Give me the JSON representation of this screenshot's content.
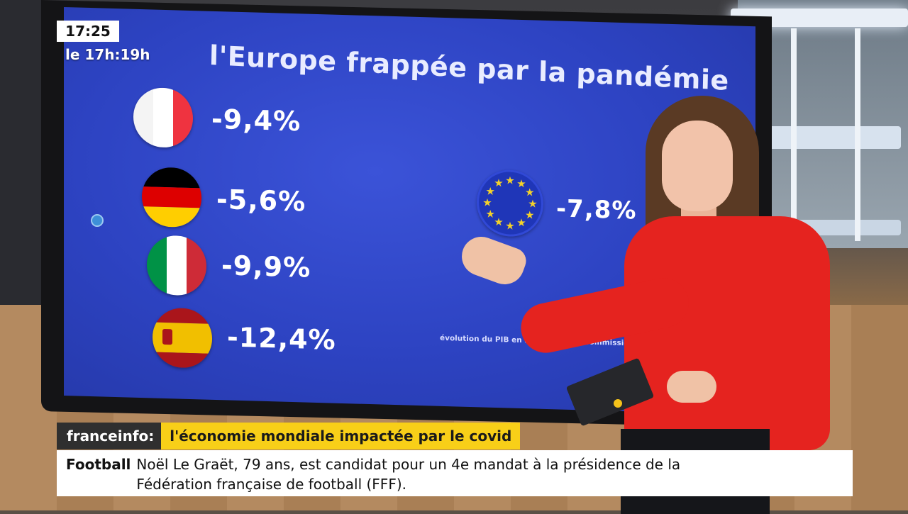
{
  "overlay": {
    "clock": "17:25",
    "program": "le 17h:19h"
  },
  "screen": {
    "title": "l'Europe frappée par la pandémie",
    "countries": [
      {
        "flag_icon": "france-flag-icon",
        "value": "-9,4%",
        "colors": [
          "#ffffff",
          "#ffffff",
          "#ef3340"
        ]
      },
      {
        "flag_icon": "germany-flag-icon",
        "value": "-5,6%",
        "colors": [
          "#000000",
          "#dd0000",
          "#ffce00"
        ]
      },
      {
        "flag_icon": "italy-flag-icon",
        "value": "-9,9%",
        "colors": [
          "#009246",
          "#ffffff",
          "#ce2b37"
        ]
      },
      {
        "flag_icon": "spain-flag-icon",
        "value": "-12,4%",
        "colors": [
          "#aa151b",
          "#f1bf00",
          "#aa151b"
        ]
      }
    ],
    "eu": {
      "flag_icon": "eu-flag-icon",
      "value": "-7,8%"
    },
    "source_note": "évolution du PIB en 2020 / source Commission europée"
  },
  "ticker": {
    "brand": "franceinfo:",
    "headline": "l'économie mondiale impactée par le covid",
    "news_category": "Football",
    "news_text_line1": "Noël Le Graët, 79 ans, est candidat pour un 4e mandat à la présidence de la",
    "news_text_line2": "Fédération française de football (FFF)."
  },
  "colors": {
    "screen_blue": "#2d43c2",
    "headline_yellow": "#f8cf18",
    "sweater_red": "#e5231f"
  }
}
